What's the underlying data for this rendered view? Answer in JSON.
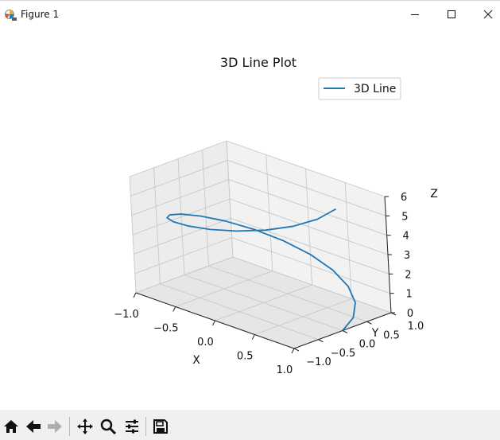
{
  "window": {
    "title": "Figure 1"
  },
  "icons": {
    "app": "matplotlib-figure-icon",
    "minimize": "minimize-icon",
    "maximize": "maximize-icon",
    "close": "close-icon"
  },
  "toolbar": {
    "tools": [
      {
        "name": "home-icon"
      },
      {
        "name": "back-icon"
      },
      {
        "name": "forward-icon"
      },
      {
        "name": "pan-icon"
      },
      {
        "name": "zoom-icon"
      },
      {
        "name": "subplots-icon"
      },
      {
        "name": "save-icon"
      }
    ]
  },
  "chart_data": {
    "type": "line",
    "projection": "3d",
    "title": "3D Line Plot",
    "xlabel": "X",
    "ylabel": "Y",
    "zlabel": "Z",
    "xlim": [
      -1.0,
      1.0
    ],
    "ylim": [
      -1.0,
      1.0
    ],
    "zlim": [
      0,
      6
    ],
    "x_ticks": [
      "−1.0",
      "−0.5",
      "0.0",
      "0.5",
      "1.0"
    ],
    "y_ticks": [
      "−1.0",
      "−0.5",
      "0.0",
      "0.5",
      "1.0"
    ],
    "z_ticks": [
      "0",
      "1",
      "2",
      "3",
      "4",
      "5",
      "6"
    ],
    "grid": true,
    "legend": {
      "position": "top-right",
      "entries": [
        "3D Line"
      ]
    },
    "series": [
      {
        "name": "3D Line",
        "color": "#1f77b4",
        "points": [
          [
            1.0,
            0.0,
            0.0
          ],
          [
            0.95,
            0.309,
            0.314
          ],
          [
            0.809,
            0.588,
            0.628
          ],
          [
            0.588,
            0.809,
            0.942
          ],
          [
            0.309,
            0.951,
            1.257
          ],
          [
            0.0,
            1.0,
            1.571
          ],
          [
            -0.309,
            0.951,
            1.885
          ],
          [
            -0.588,
            0.809,
            2.199
          ],
          [
            -0.809,
            0.588,
            2.513
          ],
          [
            -0.951,
            0.309,
            2.827
          ],
          [
            -1.0,
            0.0,
            3.142
          ],
          [
            -0.951,
            -0.309,
            3.456
          ],
          [
            -0.809,
            -0.588,
            3.77
          ],
          [
            -0.588,
            -0.809,
            4.084
          ],
          [
            -0.309,
            -0.951,
            4.398
          ],
          [
            0.0,
            -1.0,
            4.712
          ],
          [
            0.309,
            -0.951,
            5.027
          ],
          [
            0.588,
            -0.809,
            5.341
          ],
          [
            0.809,
            -0.588,
            5.655
          ],
          [
            0.951,
            -0.309,
            5.969
          ],
          [
            1.0,
            0.0,
            6.283
          ]
        ]
      }
    ]
  }
}
